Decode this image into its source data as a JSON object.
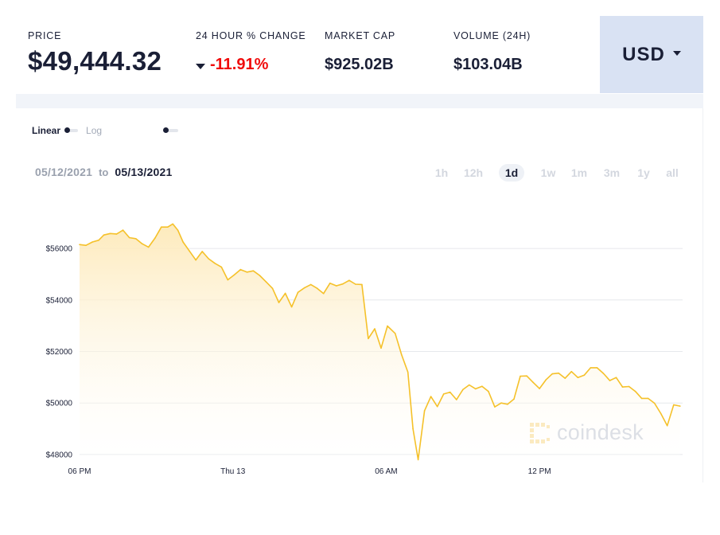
{
  "stats": {
    "price": {
      "label": "PRICE",
      "value": "$49,444.32"
    },
    "change": {
      "label": "24 HOUR % CHANGE",
      "value": "-11.91%",
      "direction": "down",
      "color": "#f00c0c"
    },
    "market_cap": {
      "label": "MARKET CAP",
      "value": "$925.02B"
    },
    "volume": {
      "label": "VOLUME (24H)",
      "value": "$103.04B"
    }
  },
  "currency": {
    "label": "USD",
    "icon": "chevron-down-icon"
  },
  "scale": {
    "linear_label": "Linear",
    "log_label": "Log",
    "selected": "Linear"
  },
  "daterange": {
    "from": "05/12/2021",
    "to_word": "to",
    "to": "05/13/2021"
  },
  "ranges": [
    {
      "label": "1h",
      "active": false
    },
    {
      "label": "12h",
      "active": false
    },
    {
      "label": "1d",
      "active": true
    },
    {
      "label": "1w",
      "active": false
    },
    {
      "label": "1m",
      "active": false
    },
    {
      "label": "3m",
      "active": false
    },
    {
      "label": "1y",
      "active": false
    },
    {
      "label": "all",
      "active": false
    }
  ],
  "watermark": {
    "text": "coindesk"
  },
  "colors": {
    "line": "#f5c12a",
    "fill_top": "#fde9b8",
    "grid": "#e6e8ec",
    "accent": "#d9e2f3"
  },
  "chart_data": {
    "type": "area",
    "xlabel": "",
    "ylabel": "",
    "ylim": [
      47750,
      57300
    ],
    "xlim": [
      0,
      23.6
    ],
    "x_unit": "hours since 05/12/2021 6 PM",
    "grid": {
      "horizontal": true,
      "vertical": false
    },
    "y_ticks": [
      {
        "value": 48000,
        "label": "$48000"
      },
      {
        "value": 50000,
        "label": "$50000"
      },
      {
        "value": 52000,
        "label": "$52000"
      },
      {
        "value": 54000,
        "label": "$54000"
      },
      {
        "value": 56000,
        "label": "$56000"
      }
    ],
    "x_ticks": [
      {
        "value": 0,
        "label": "06 PM"
      },
      {
        "value": 6,
        "label": "Thu 13"
      },
      {
        "value": 12,
        "label": "06 AM"
      },
      {
        "value": 18,
        "label": "12 PM"
      }
    ],
    "series": [
      {
        "name": "",
        "x": [
          0,
          0.25,
          0.5,
          0.75,
          0.95,
          1.2,
          1.45,
          1.7,
          1.95,
          2.2,
          2.45,
          2.7,
          2.95,
          3.2,
          3.45,
          3.65,
          3.85,
          4.05,
          4.3,
          4.55,
          4.8,
          5.05,
          5.3,
          5.55,
          5.8,
          6.05,
          6.3,
          6.55,
          6.8,
          7.05,
          7.3,
          7.55,
          7.8,
          8.05,
          8.3,
          8.55,
          8.8,
          9.05,
          9.3,
          9.55,
          9.8,
          10.05,
          10.3,
          10.55,
          10.8,
          11.05,
          11.3,
          11.55,
          11.8,
          12.05,
          12.35,
          12.6,
          12.85,
          13.05,
          13.25,
          13.5,
          13.75,
          14.0,
          14.25,
          14.5,
          14.75,
          15.0,
          15.25,
          15.5,
          15.75,
          16.0,
          16.25,
          16.5,
          16.75,
          17.0,
          17.25,
          17.5,
          17.75,
          18.0,
          18.25,
          18.5,
          18.75,
          19.0,
          19.25,
          19.5,
          19.75,
          20.0,
          20.25,
          20.5,
          20.75,
          21.0,
          21.25,
          21.5,
          21.75,
          22.0,
          22.25,
          22.5,
          22.75,
          23.0,
          23.25,
          23.5
        ],
        "values": [
          56150,
          56120,
          56250,
          56320,
          56520,
          56580,
          56560,
          56710,
          56420,
          56380,
          56180,
          56050,
          56400,
          56830,
          56830,
          56950,
          56700,
          56250,
          55900,
          55550,
          55880,
          55600,
          55420,
          55280,
          54780,
          54970,
          55180,
          55080,
          55130,
          54950,
          54700,
          54450,
          53900,
          54260,
          53730,
          54300,
          54470,
          54600,
          54450,
          54250,
          54650,
          54550,
          54620,
          54760,
          54610,
          54600,
          52500,
          52880,
          52130,
          52990,
          52700,
          51880,
          51200,
          49000,
          47800,
          49700,
          50250,
          49860,
          50350,
          50420,
          50130,
          50520,
          50700,
          50550,
          50650,
          50450,
          49850,
          50000,
          49950,
          50150,
          51040,
          51050,
          50800,
          50560,
          50900,
          51130,
          51160,
          50960,
          51220,
          50990,
          51080,
          51370,
          51370,
          51150,
          50870,
          50990,
          50620,
          50640,
          50450,
          50180,
          50180,
          49990,
          49590,
          49120,
          49930,
          49880
        ]
      }
    ]
  }
}
